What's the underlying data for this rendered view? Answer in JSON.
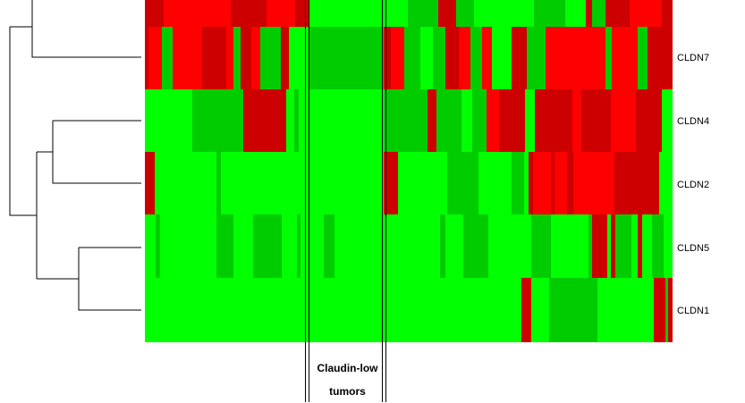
{
  "chart_data": {
    "type": "heatmap",
    "rows": [
      "",
      "CLDN7",
      "CLDN4",
      "CLDN2",
      "CLDN5",
      "CLDN1"
    ],
    "colors": {
      "high": "#ff0000",
      "mid_high": "#cc0000",
      "mid_low": "#00cc00",
      "low": "#00ff00"
    },
    "legend": "none",
    "grid": false
  },
  "gene_labels": [
    "CLDN7",
    "CLDN4",
    "CLDN2",
    "CLDN5",
    "CLDN1"
  ],
  "group_label": {
    "line1": "Claudin-low",
    "line2": "tumors"
  }
}
